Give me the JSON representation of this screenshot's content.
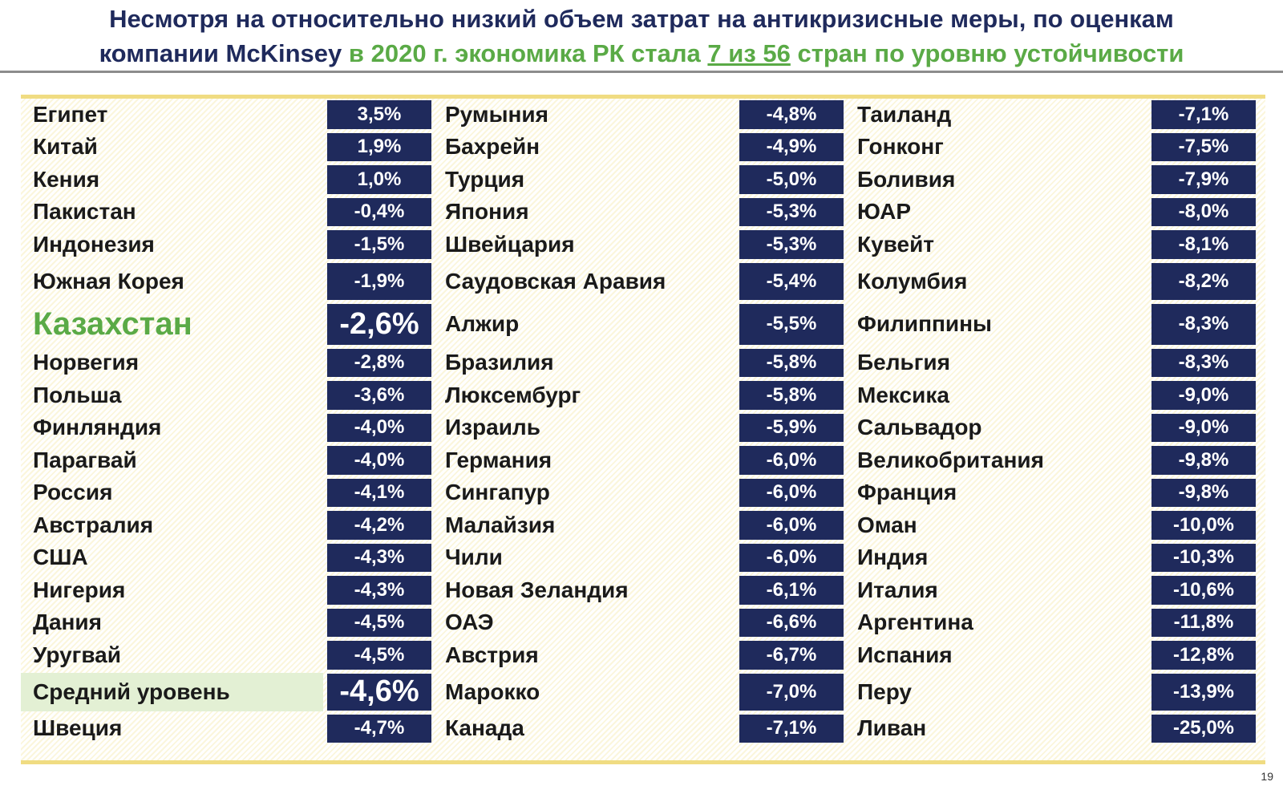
{
  "header": {
    "line1": "Несмотря на относительно низкий объем затрат на антикризисные меры, по оценкам",
    "line2": [
      "компании McKinsey",
      "в 2020 г. экономика РК стала",
      "7 из 56",
      "стран по уровню устойчивости"
    ]
  },
  "table": {
    "columns": [
      {
        "rows": [
          [
            "Египет",
            "3,5%"
          ],
          [
            "Китай",
            "1,9%"
          ],
          [
            "Кения",
            "1,0%"
          ],
          [
            "Пакистан",
            "-0,4%"
          ],
          [
            "Индонезия",
            "-1,5%"
          ],
          [
            "Южная Корея",
            "-1,9%"
          ],
          [
            "Казахстан",
            "-2,6%"
          ],
          [
            "Норвегия",
            "-2,8%"
          ],
          [
            "Польша",
            "-3,6%"
          ],
          [
            "Финляндия",
            "-4,0%"
          ],
          [
            "Парагвай",
            "-4,0%"
          ],
          [
            "Россия",
            "-4,1%"
          ],
          [
            "Австралия",
            "-4,2%"
          ],
          [
            "США",
            "-4,3%"
          ],
          [
            "Нигерия",
            "-4,3%"
          ],
          [
            "Дания",
            "-4,5%"
          ],
          [
            "Уругвай",
            "-4,5%"
          ],
          [
            "Средний уровень",
            "-4,6%"
          ],
          [
            "Швеция",
            "-4,7%"
          ]
        ]
      },
      {
        "rows": [
          [
            "Румыния",
            "-4,8%"
          ],
          [
            "Бахрейн",
            "-4,9%"
          ],
          [
            "Турция",
            "-5,0%"
          ],
          [
            "Япония",
            "-5,3%"
          ],
          [
            "Швейцария",
            "-5,3%"
          ],
          [
            "Саудовская Аравия",
            "-5,4%"
          ],
          [
            "Алжир",
            "-5,5%"
          ],
          [
            "Бразилия",
            "-5,8%"
          ],
          [
            "Люксембург",
            "-5,8%"
          ],
          [
            "Израиль",
            "-5,9%"
          ],
          [
            "Германия",
            "-6,0%"
          ],
          [
            "Сингапур",
            "-6,0%"
          ],
          [
            "Малайзия",
            "-6,0%"
          ],
          [
            "Чили",
            "-6,0%"
          ],
          [
            "Новая Зеландия",
            "-6,1%"
          ],
          [
            "ОАЭ",
            "-6,6%"
          ],
          [
            "Австрия",
            "-6,7%"
          ],
          [
            "Марокко",
            "-7,0%"
          ],
          [
            "Канада",
            "-7,1%"
          ]
        ]
      },
      {
        "rows": [
          [
            "Таиланд",
            "-7,1%"
          ],
          [
            "Гонконг",
            "-7,5%"
          ],
          [
            "Боливия",
            "-7,9%"
          ],
          [
            "ЮАР",
            "-8,0%"
          ],
          [
            "Кувейт",
            "-8,1%"
          ],
          [
            "Колумбия",
            "-8,2%"
          ],
          [
            "Филиппины",
            "-8,3%"
          ],
          [
            "Бельгия",
            "-8,3%"
          ],
          [
            "Мексика",
            "-9,0%"
          ],
          [
            "Сальвадор",
            "-9,0%"
          ],
          [
            "Великобритания",
            "-9,8%"
          ],
          [
            "Франция",
            "-9,8%"
          ],
          [
            "Оман",
            "-10,0%"
          ],
          [
            "Индия",
            "-10,3%"
          ],
          [
            "Италия",
            "-10,6%"
          ],
          [
            "Аргентина",
            "-11,8%"
          ],
          [
            "Испания",
            "-12,8%"
          ],
          [
            "Перу",
            "-13,9%"
          ],
          [
            "Ливан",
            "-25,0%"
          ]
        ]
      }
    ]
  },
  "footer": {
    "page": "19"
  }
}
